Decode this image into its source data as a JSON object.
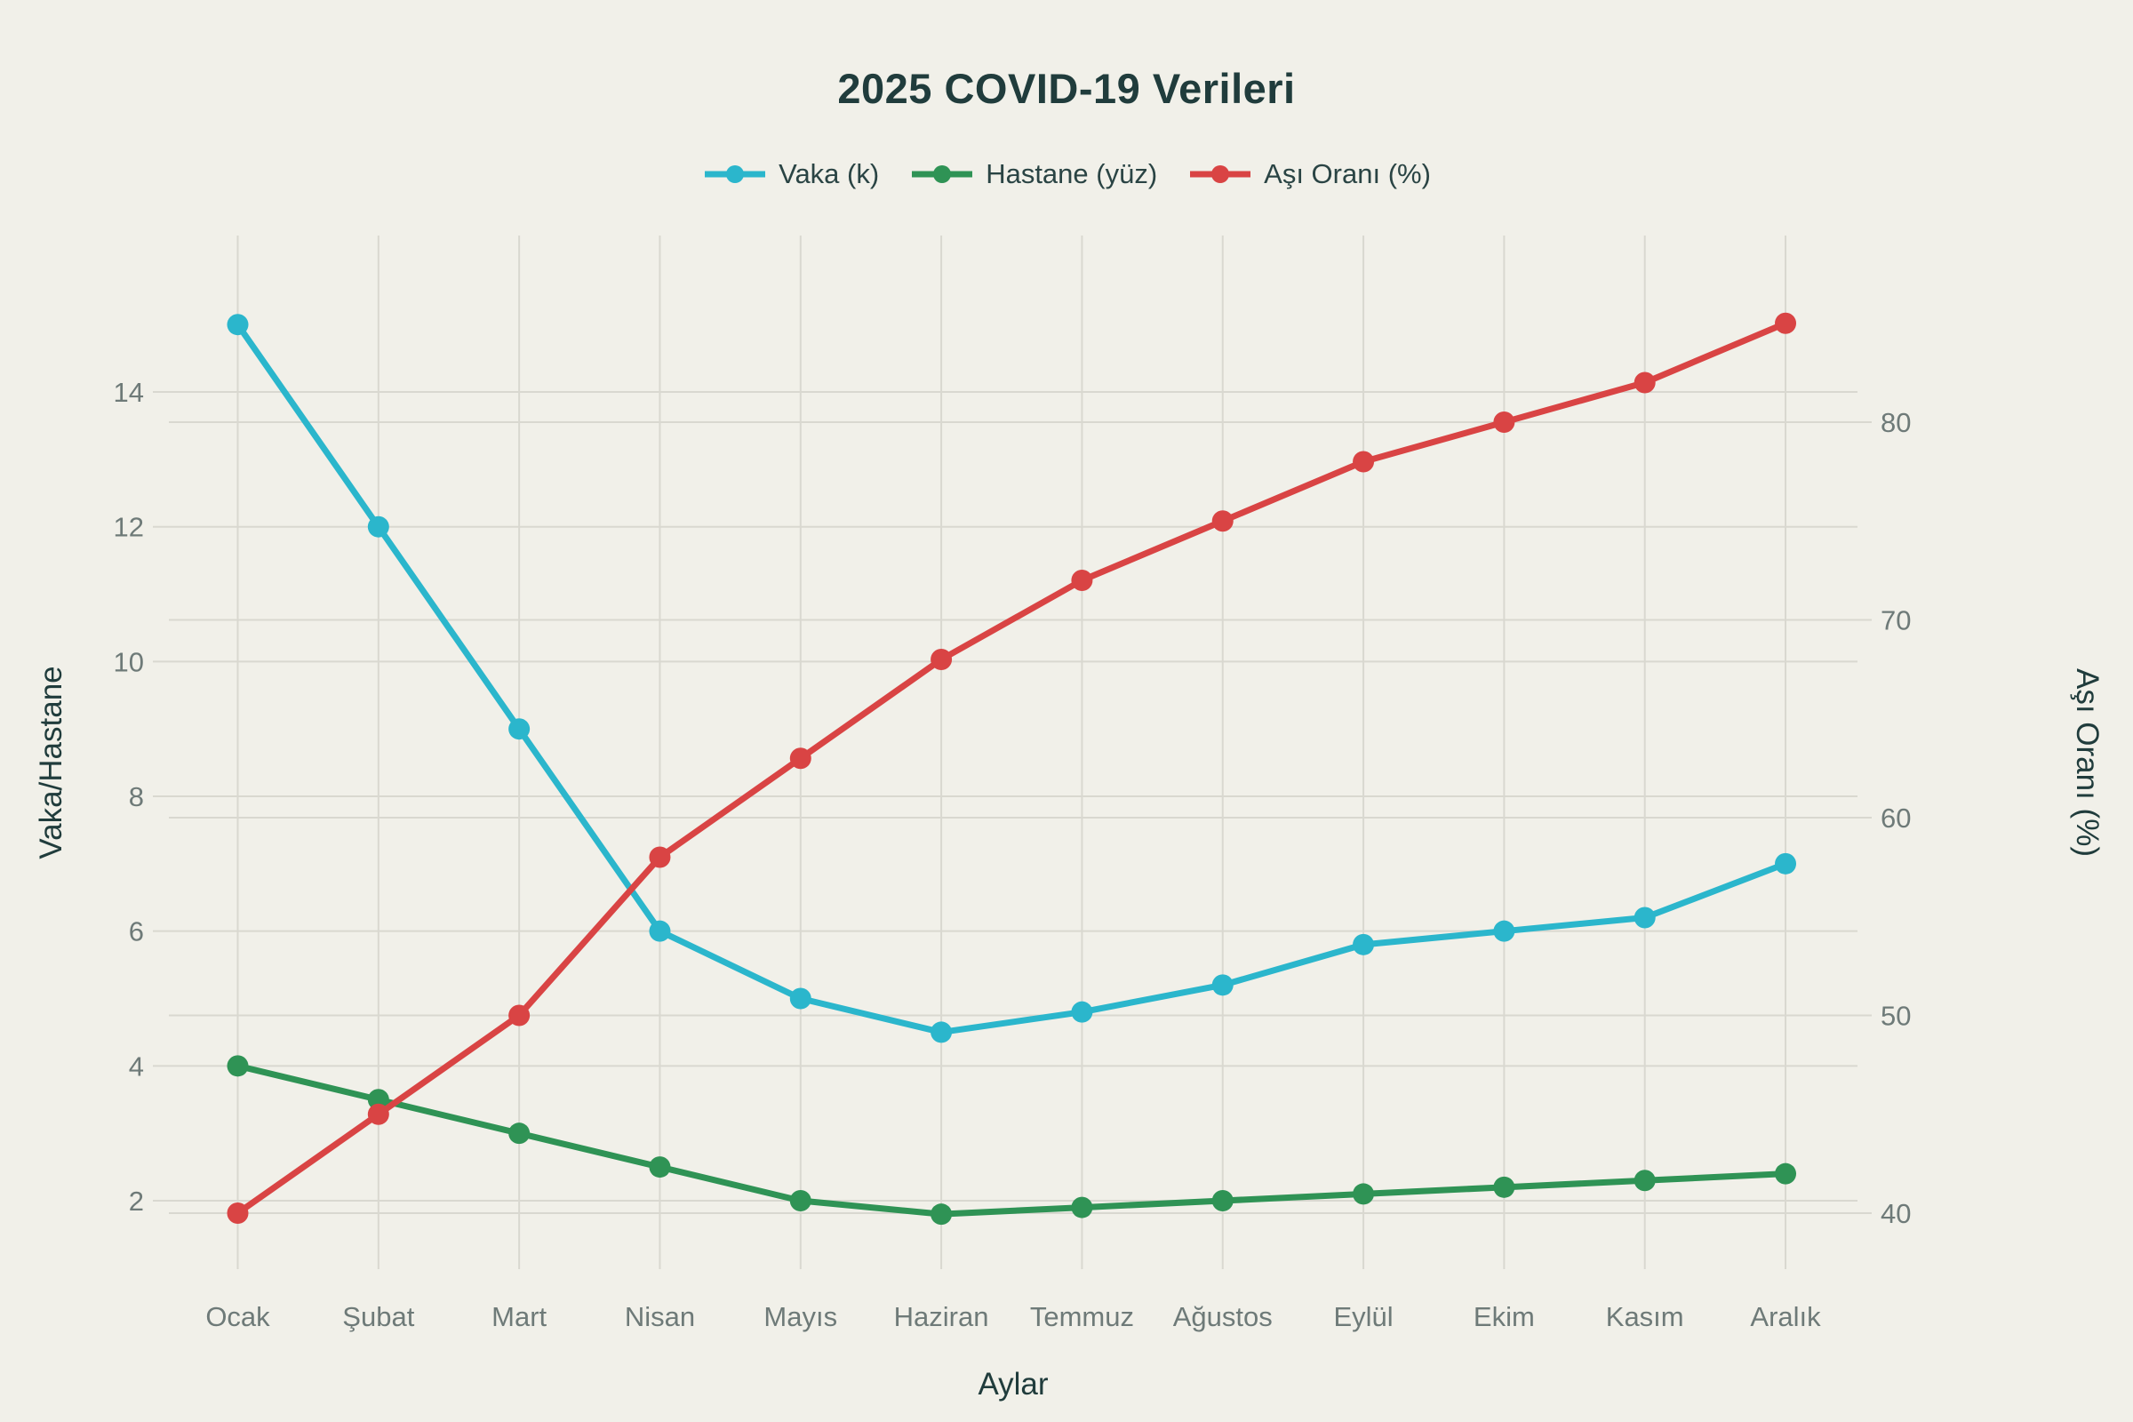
{
  "title": "2025 COVID-19 Verileri",
  "legend": [
    {
      "label": "Vaka (k)",
      "color": "#2bb6cc"
    },
    {
      "label": "Hastane (yüz)",
      "color": "#2f9355"
    },
    {
      "label": "Aşı Oranı (%)",
      "color": "#d94444"
    }
  ],
  "axes": {
    "left_label": "Vaka/Hastane",
    "right_label": "Aşı Oranı (%)",
    "x_label": "Aylar",
    "left_ticks": [
      2,
      4,
      6,
      8,
      10,
      12,
      14
    ],
    "right_ticks": [
      40,
      50,
      60,
      70,
      80
    ]
  },
  "colors": {
    "background": "#f1f0e9",
    "grid": "#d9d8d0",
    "tick_text": "#6e7a78",
    "title_text": "#203c3c"
  },
  "chart_data": {
    "type": "line",
    "title": "2025 COVID-19 Verileri",
    "xlabel": "Aylar",
    "ylabel_left": "Vaka/Hastane",
    "ylabel_right": "Aşı Oranı (%)",
    "categories": [
      "Ocak",
      "Şubat",
      "Mart",
      "Nisan",
      "Mayıs",
      "Haziran",
      "Temmuz",
      "Ağustos",
      "Eylül",
      "Ekim",
      "Kasım",
      "Aralık"
    ],
    "series": [
      {
        "name": "Vaka (k)",
        "axis": "left",
        "color": "#2bb6cc",
        "values": [
          15,
          12,
          9,
          6,
          5,
          4.5,
          4.8,
          5.2,
          5.8,
          6,
          6.2,
          7
        ]
      },
      {
        "name": "Hastane (yüz)",
        "axis": "left",
        "color": "#2f9355",
        "values": [
          4,
          3.5,
          3,
          2.5,
          2,
          1.8,
          1.9,
          2,
          2.1,
          2.2,
          2.3,
          2.4
        ]
      },
      {
        "name": "Aşı Oranı (%)",
        "axis": "right",
        "color": "#d94444",
        "values": [
          40,
          45,
          50,
          58,
          63,
          68,
          72,
          75,
          78,
          80,
          82,
          85
        ]
      }
    ],
    "left_axis_ticks": [
      2,
      4,
      6,
      8,
      10,
      12,
      14
    ],
    "right_axis_ticks": [
      40,
      50,
      60,
      70,
      80
    ],
    "grid": true,
    "legend_position": "top-center"
  }
}
